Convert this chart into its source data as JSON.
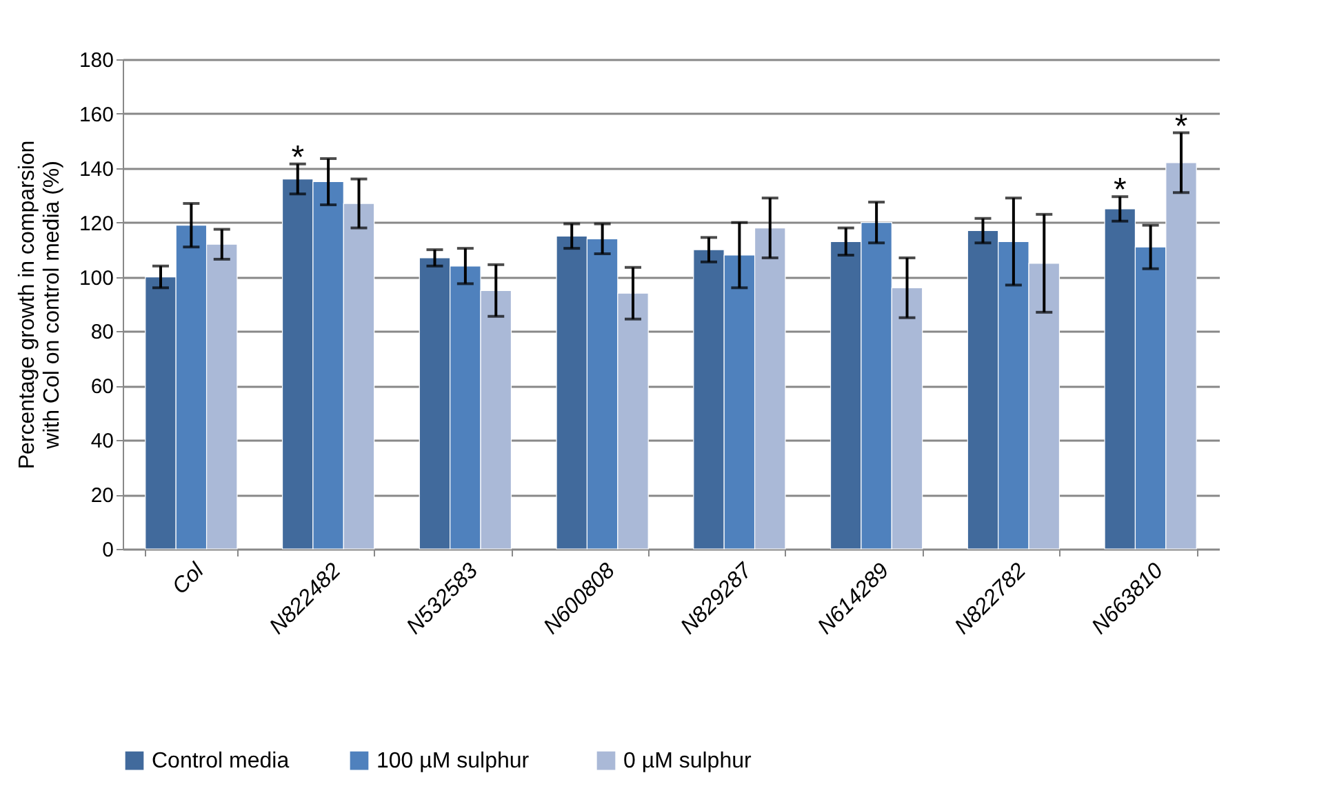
{
  "chart_data": {
    "type": "bar",
    "ylabel": "Percentage growth in comparsion with Col on control media (%)",
    "categories": [
      "Col",
      "N822482",
      "N532583",
      "N600808",
      "N829287",
      "N614289",
      "N822782",
      "N663810"
    ],
    "series": [
      {
        "name": "Control media",
        "color": "#416a9c",
        "values": [
          100,
          136,
          107,
          115,
          110,
          113,
          117,
          125
        ],
        "errors": [
          4,
          5.5,
          3,
          4.5,
          4.5,
          5,
          4.5,
          4.5
        ]
      },
      {
        "name": "100  µM sulphur",
        "color": "#4f81bd",
        "values": [
          119,
          135,
          104,
          114,
          108,
          120,
          113,
          111
        ],
        "errors": [
          8,
          8.5,
          6.5,
          5.5,
          12,
          7.5,
          16,
          8
        ]
      },
      {
        "name": "0  µM sulphur",
        "color": "#aab9d7",
        "values": [
          112,
          127,
          95,
          94,
          118,
          96,
          105,
          142
        ],
        "errors": [
          5.5,
          9,
          9.5,
          9.5,
          11,
          11,
          18,
          11
        ]
      }
    ],
    "annotations": [
      {
        "text": "*",
        "x": "N822482",
        "y": 136
      },
      {
        "text": "*",
        "x": "N663810",
        "y": 125
      },
      {
        "text": "*",
        "x": "N663810",
        "y": 142
      }
    ],
    "ylim": [
      0,
      180
    ],
    "yticks": [
      0,
      20,
      40,
      60,
      80,
      100,
      120,
      140,
      160,
      180
    ],
    "grid": "y",
    "legend": "bottom"
  }
}
